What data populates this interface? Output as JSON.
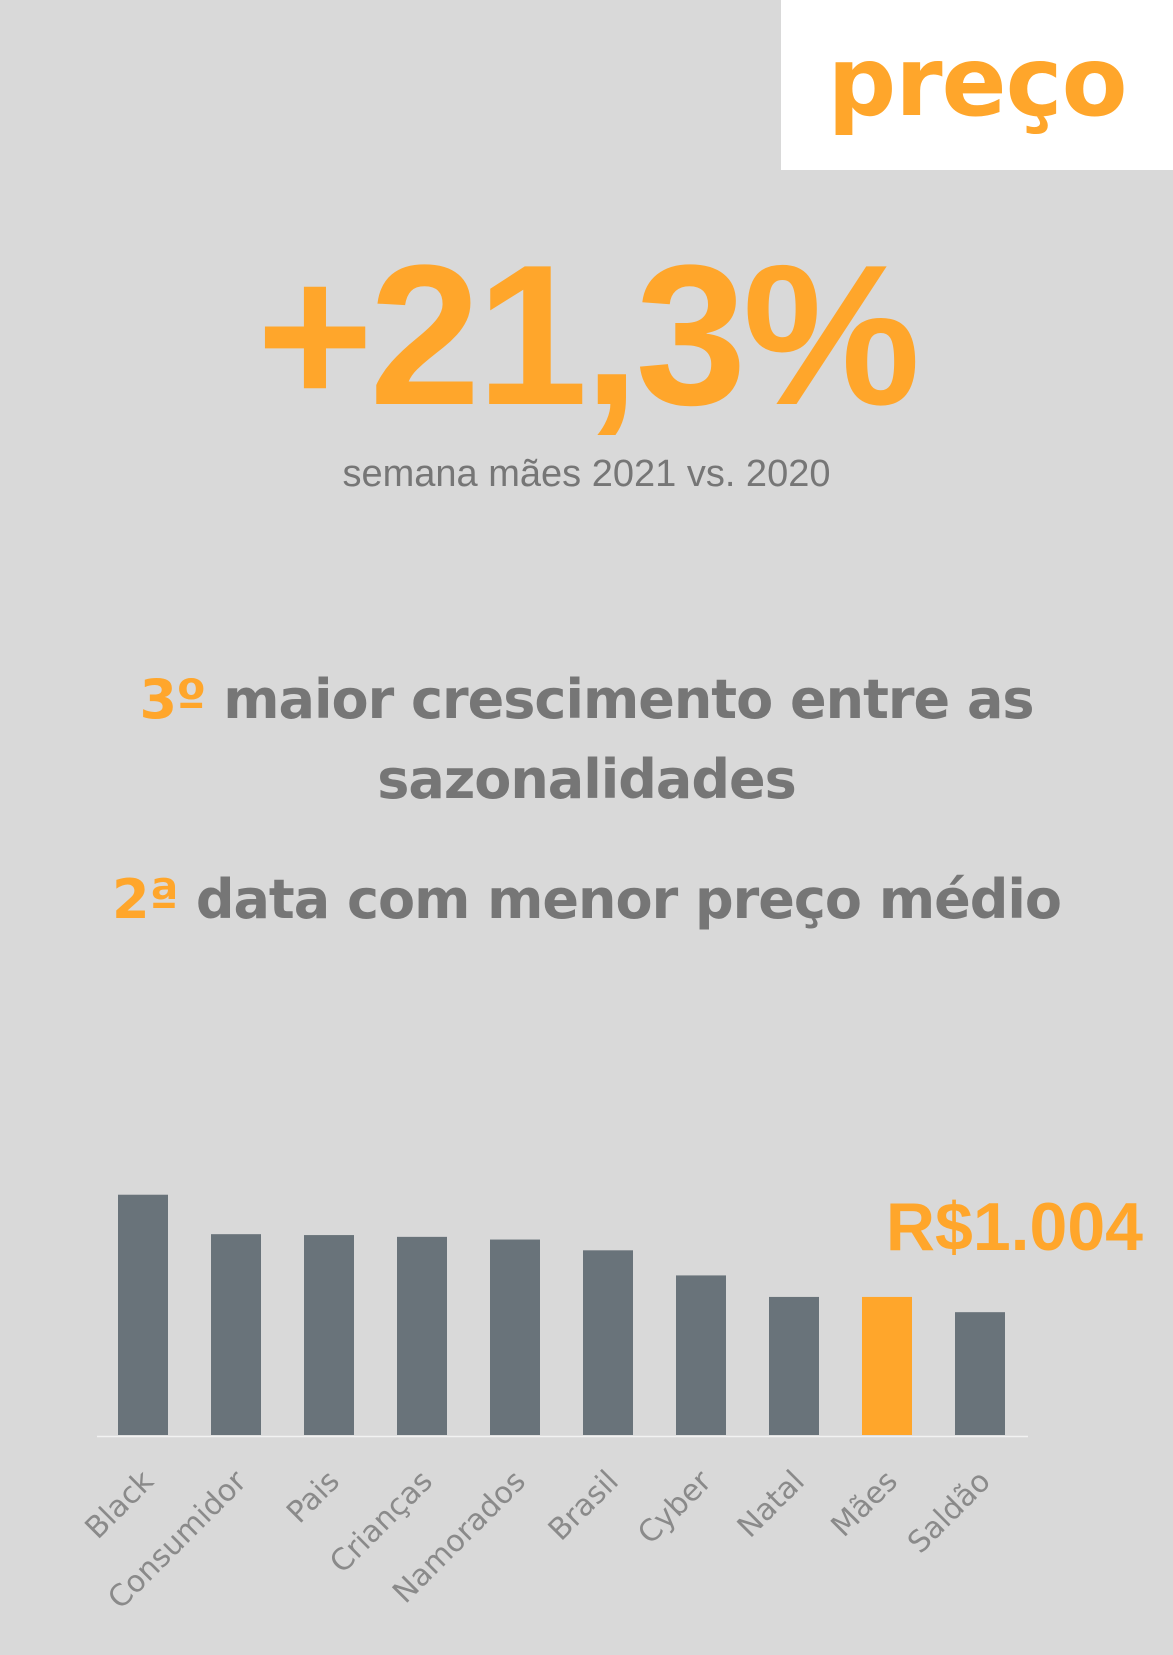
{
  "header": {
    "tag": "preço"
  },
  "highlight": {
    "value": "+21,3%",
    "subtitle": "semana mães 2021 vs. 2020"
  },
  "facts": [
    {
      "rank": "3º",
      "text": " maior crescimento entre as sazonalidades"
    },
    {
      "rank": "2ª",
      "text": " data com menor preço médio"
    }
  ],
  "colors": {
    "accent": "#ffa62b",
    "bar": "#69737a",
    "background": "#d9d9d9",
    "text": "#767676"
  },
  "chart_data": {
    "type": "bar",
    "categories": [
      "Black",
      "Consumidor",
      "Pais",
      "Crianças",
      "Namorados",
      "Brasil",
      "Cyber",
      "Natal",
      "Mães",
      "Saldão"
    ],
    "values": [
      1118,
      1074,
      1073,
      1071,
      1068,
      1056,
      1028,
      1004,
      1004,
      987
    ],
    "highlight_index": 8,
    "annotation": "R$1.004",
    "ylim": [
      850,
      1140
    ],
    "title": "",
    "xlabel": "",
    "ylabel": "",
    "grid": false,
    "legend": "none"
  }
}
